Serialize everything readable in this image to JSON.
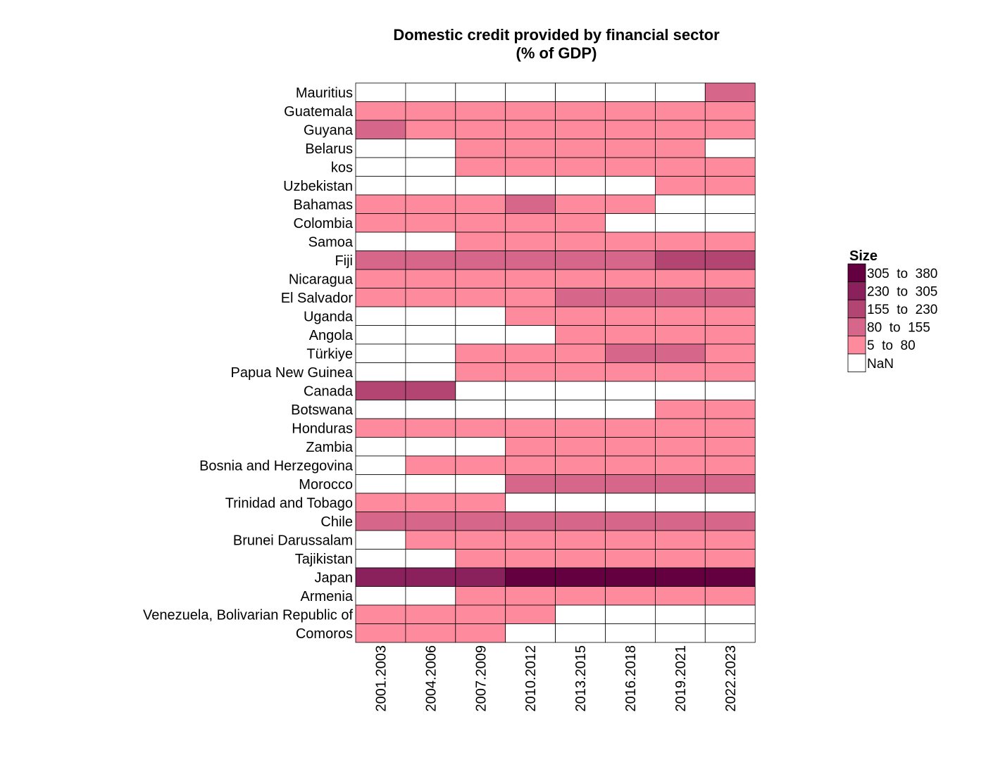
{
  "chart_data": {
    "type": "heatmap",
    "title_lines": [
      "Domestic credit provided by financial sector",
      "(% of GDP)"
    ],
    "xlabel": "",
    "ylabel": "",
    "columns": [
      "2001.2003",
      "2004.2006",
      "2007.2009",
      "2010.2012",
      "2013.2015",
      "2016.2018",
      "2019.2021",
      "2022.2023"
    ],
    "rows": [
      "Mauritius",
      "Guatemala",
      "Guyana",
      "Belarus",
      "kos",
      "Uzbekistan",
      "Bahamas",
      "Colombia",
      "Samoa",
      "Fiji",
      "Nicaragua",
      "El Salvador",
      "Uganda",
      "Angola",
      "Türkiye",
      "Papua New Guinea",
      "Canada",
      "Botswana",
      "Honduras",
      "Zambia",
      "Bosnia and Herzegovina",
      "Morocco",
      "Trinidad and Tobago",
      "Chile",
      "Brunei Darussalam",
      "Tajikistan",
      "Japan",
      "Armenia",
      "Venezuela, Bolivarian Republic of",
      "Comoros"
    ],
    "bins": [
      "NaN",
      "5  to  80",
      "80  to  155",
      "155  to  230",
      "230  to  305",
      "305  to  380"
    ],
    "bin_colors": [
      "#ffffff",
      "#fe8a9d",
      "#d6678a",
      "#b34572",
      "#8b215c",
      "#640040"
    ],
    "cells": [
      [
        0,
        0,
        0,
        0,
        0,
        0,
        0,
        2
      ],
      [
        1,
        1,
        1,
        1,
        1,
        1,
        1,
        1
      ],
      [
        2,
        1,
        1,
        1,
        1,
        1,
        1,
        1
      ],
      [
        0,
        0,
        1,
        1,
        1,
        1,
        1,
        0
      ],
      [
        0,
        0,
        1,
        1,
        1,
        1,
        1,
        1
      ],
      [
        0,
        0,
        0,
        0,
        0,
        0,
        1,
        1
      ],
      [
        1,
        1,
        1,
        2,
        1,
        1,
        0,
        0
      ],
      [
        1,
        1,
        1,
        1,
        1,
        0,
        0,
        0
      ],
      [
        0,
        0,
        1,
        1,
        1,
        1,
        1,
        1
      ],
      [
        2,
        2,
        2,
        2,
        2,
        2,
        3,
        3
      ],
      [
        1,
        1,
        1,
        1,
        1,
        1,
        1,
        1
      ],
      [
        1,
        1,
        1,
        1,
        2,
        2,
        2,
        2
      ],
      [
        0,
        0,
        0,
        1,
        1,
        1,
        1,
        1
      ],
      [
        0,
        0,
        0,
        0,
        1,
        1,
        1,
        1
      ],
      [
        0,
        0,
        1,
        1,
        1,
        2,
        2,
        1
      ],
      [
        0,
        0,
        1,
        1,
        1,
        1,
        1,
        1
      ],
      [
        3,
        3,
        0,
        0,
        0,
        0,
        0,
        0
      ],
      [
        0,
        0,
        0,
        0,
        0,
        0,
        1,
        1
      ],
      [
        1,
        1,
        1,
        1,
        1,
        1,
        1,
        1
      ],
      [
        0,
        0,
        0,
        1,
        1,
        1,
        1,
        1
      ],
      [
        0,
        1,
        1,
        1,
        1,
        1,
        1,
        1
      ],
      [
        0,
        0,
        0,
        2,
        2,
        2,
        2,
        2
      ],
      [
        1,
        1,
        1,
        0,
        0,
        0,
        0,
        0
      ],
      [
        2,
        2,
        2,
        2,
        2,
        2,
        2,
        2
      ],
      [
        0,
        1,
        1,
        1,
        1,
        1,
        1,
        1
      ],
      [
        0,
        0,
        1,
        1,
        1,
        1,
        1,
        1
      ],
      [
        4,
        4,
        4,
        5,
        5,
        5,
        5,
        5
      ],
      [
        0,
        0,
        1,
        1,
        1,
        1,
        1,
        1
      ],
      [
        1,
        1,
        1,
        1,
        0,
        0,
        0,
        0
      ],
      [
        1,
        1,
        1,
        0,
        0,
        0,
        0,
        0
      ]
    ],
    "legend": {
      "title": "Size",
      "entries": [
        "305  to  380",
        "230  to  305",
        "155  to  230",
        "80  to  155",
        "5  to  80",
        "NaN"
      ]
    },
    "grid": true,
    "legend_position": "right"
  }
}
